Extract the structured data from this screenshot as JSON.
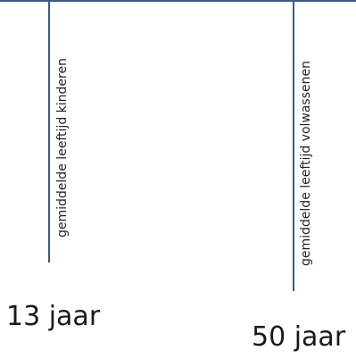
{
  "markers": [
    {
      "label": "gemiddelde leeftijd kinderen",
      "value": "13 jaar"
    },
    {
      "label": "gemiddelde leeftijd volwassenen",
      "value": "50 jaar"
    }
  ],
  "colors": {
    "line": "#3d5a80",
    "text": "#1a1a1a"
  }
}
